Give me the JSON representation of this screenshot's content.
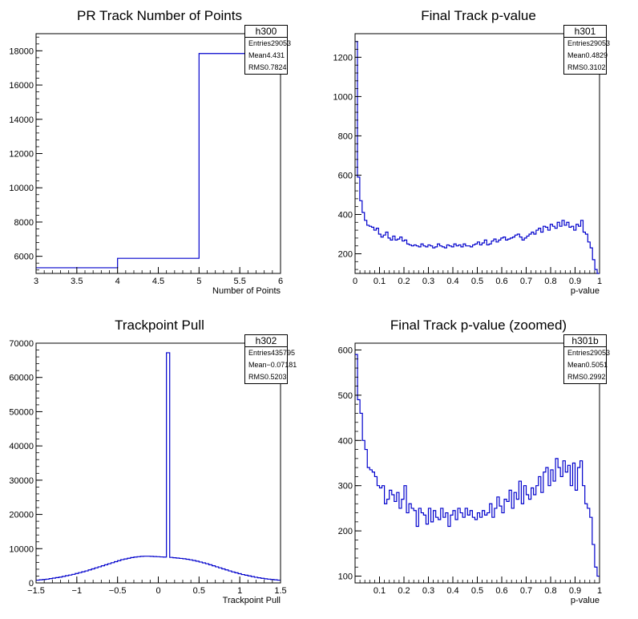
{
  "chart_data": [
    {
      "type": "histogram",
      "title": "PR Track Number of Points",
      "xlabel": "Number of Points",
      "ylabel": "",
      "xlim": [
        3,
        6
      ],
      "ylim": [
        5000,
        19000
      ],
      "xticks": [
        3,
        3.5,
        4,
        4.5,
        5,
        5.5,
        6
      ],
      "xtick_labels": [
        "3",
        "3.5",
        "4",
        "4.5",
        "5",
        "5.5",
        "6"
      ],
      "yticks": [
        6000,
        8000,
        10000,
        12000,
        14000,
        16000,
        18000
      ],
      "ytick_labels": [
        "6000",
        "8000",
        "10000",
        "12000",
        "14000",
        "16000",
        "18000"
      ],
      "bin_edges": [
        3,
        4,
        5,
        6
      ],
      "values": [
        5330,
        5880,
        17840
      ],
      "stats": {
        "name": "h300",
        "rows": [
          [
            "Entries",
            "29053"
          ],
          [
            "Mean",
            "4.431"
          ],
          [
            "RMS",
            "0.7824"
          ]
        ]
      }
    },
    {
      "type": "histogram",
      "title": "Final Track p-value",
      "xlabel": "p-value",
      "ylabel": "",
      "xlim": [
        0,
        1
      ],
      "ylim": [
        100,
        1320
      ],
      "xticks": [
        0,
        0.1,
        0.2,
        0.3,
        0.4,
        0.5,
        0.6,
        0.7,
        0.8,
        0.9,
        1
      ],
      "xtick_labels": [
        "0",
        "0.1",
        "0.2",
        "0.3",
        "0.4",
        "0.5",
        "0.6",
        "0.7",
        "0.8",
        "0.9",
        "1"
      ],
      "yticks": [
        200,
        400,
        600,
        800,
        1000,
        1200
      ],
      "ytick_labels": [
        "200",
        "400",
        "600",
        "800",
        "1000",
        "1200"
      ],
      "bin_edges_range": [
        0,
        1
      ],
      "values": [
        1280,
        590,
        470,
        410,
        370,
        345,
        340,
        335,
        320,
        330,
        300,
        285,
        295,
        310,
        280,
        270,
        290,
        270,
        275,
        285,
        265,
        270,
        250,
        245,
        240,
        245,
        240,
        235,
        250,
        240,
        235,
        245,
        240,
        230,
        235,
        250,
        240,
        235,
        230,
        245,
        240,
        235,
        250,
        240,
        245,
        235,
        250,
        240,
        240,
        235,
        245,
        250,
        260,
        245,
        255,
        270,
        245,
        250,
        265,
        275,
        260,
        270,
        280,
        285,
        270,
        275,
        280,
        285,
        295,
        300,
        285,
        270,
        280,
        290,
        300,
        310,
        300,
        320,
        330,
        310,
        340,
        335,
        320,
        350,
        340,
        330,
        360,
        340,
        370,
        345,
        360,
        335,
        340,
        320,
        350,
        340,
        370,
        310,
        300,
        260,
        230,
        170,
        120,
        100
      ],
      "stats": {
        "name": "h301",
        "rows": [
          [
            "Entries",
            "29053"
          ],
          [
            "Mean",
            "0.4829"
          ],
          [
            "RMS",
            "0.3102"
          ]
        ]
      }
    },
    {
      "type": "histogram",
      "title": "Trackpoint Pull",
      "xlabel": "Trackpoint Pull",
      "ylabel": "",
      "xlim": [
        -1.5,
        1.5
      ],
      "ylim": [
        0,
        70000
      ],
      "xticks": [
        -1.5,
        -1,
        -0.5,
        0,
        0.5,
        1,
        1.5
      ],
      "xtick_labels": [
        "−1.5",
        "−1",
        "−0.5",
        "0",
        "0.5",
        "1",
        "1.5"
      ],
      "yticks": [
        0,
        10000,
        20000,
        30000,
        40000,
        50000,
        60000,
        70000
      ],
      "ytick_labels": [
        "0",
        "10000",
        "20000",
        "30000",
        "40000",
        "50000",
        "60000",
        "70000"
      ],
      "bin_edges_range": [
        -1.5,
        1.5
      ],
      "values": [
        800,
        900,
        1000,
        1100,
        1250,
        1400,
        1550,
        1700,
        1900,
        2100,
        2300,
        2500,
        2750,
        3000,
        3250,
        3500,
        3800,
        4100,
        4400,
        4700,
        5000,
        5300,
        5600,
        5900,
        6200,
        6500,
        6800,
        7000,
        7200,
        7400,
        7550,
        7650,
        7750,
        7800,
        7800,
        7750,
        7700,
        7650,
        7600,
        7550,
        67200,
        7450,
        7350,
        7250,
        7150,
        7050,
        6900,
        6750,
        6550,
        6350,
        6100,
        5850,
        5600,
        5300,
        5000,
        4700,
        4400,
        4100,
        3800,
        3500,
        3200,
        2950,
        2700,
        2450,
        2250,
        2050,
        1850,
        1650,
        1500,
        1350,
        1200,
        1100,
        1000,
        900,
        800
      ],
      "stats": {
        "name": "h302",
        "rows": [
          [
            "Entries",
            "435795"
          ],
          [
            "Mean",
            "−0.07181"
          ],
          [
            "RMS",
            "0.5203"
          ]
        ]
      }
    },
    {
      "type": "histogram",
      "title": "Final Track p-value (zoomed)",
      "xlabel": "p-value",
      "ylabel": "",
      "xlim": [
        0,
        1
      ],
      "ylim": [
        85,
        615
      ],
      "xticks": [
        0.1,
        0.2,
        0.3,
        0.4,
        0.5,
        0.6,
        0.7,
        0.8,
        0.9,
        1
      ],
      "xtick_labels": [
        "0.1",
        "0.2",
        "0.3",
        "0.4",
        "0.5",
        "0.6",
        "0.7",
        "0.8",
        "0.9",
        "1"
      ],
      "yticks": [
        100,
        200,
        300,
        400,
        500,
        600
      ],
      "ytick_labels": [
        "100",
        "200",
        "300",
        "400",
        "500",
        "600"
      ],
      "bin_edges_range": [
        0,
        1
      ],
      "values": [
        590,
        490,
        460,
        400,
        380,
        340,
        335,
        330,
        320,
        300,
        295,
        300,
        260,
        270,
        290,
        280,
        265,
        285,
        250,
        270,
        300,
        240,
        260,
        250,
        245,
        210,
        250,
        240,
        235,
        215,
        250,
        220,
        245,
        230,
        225,
        250,
        230,
        240,
        210,
        235,
        245,
        225,
        250,
        240,
        230,
        250,
        235,
        245,
        230,
        225,
        240,
        230,
        245,
        235,
        240,
        260,
        230,
        250,
        275,
        255,
        240,
        270,
        265,
        290,
        250,
        285,
        270,
        310,
        260,
        300,
        280,
        270,
        295,
        280,
        300,
        320,
        285,
        330,
        340,
        300,
        335,
        310,
        360,
        340,
        320,
        355,
        330,
        345,
        300,
        350,
        290,
        340,
        355,
        300,
        260,
        250,
        230,
        170,
        120,
        100
      ],
      "stats": {
        "name": "h301b",
        "rows": [
          [
            "Entries",
            "29053"
          ],
          [
            "Mean",
            "0.5051"
          ],
          [
            "RMS",
            "0.2992"
          ]
        ]
      }
    }
  ]
}
